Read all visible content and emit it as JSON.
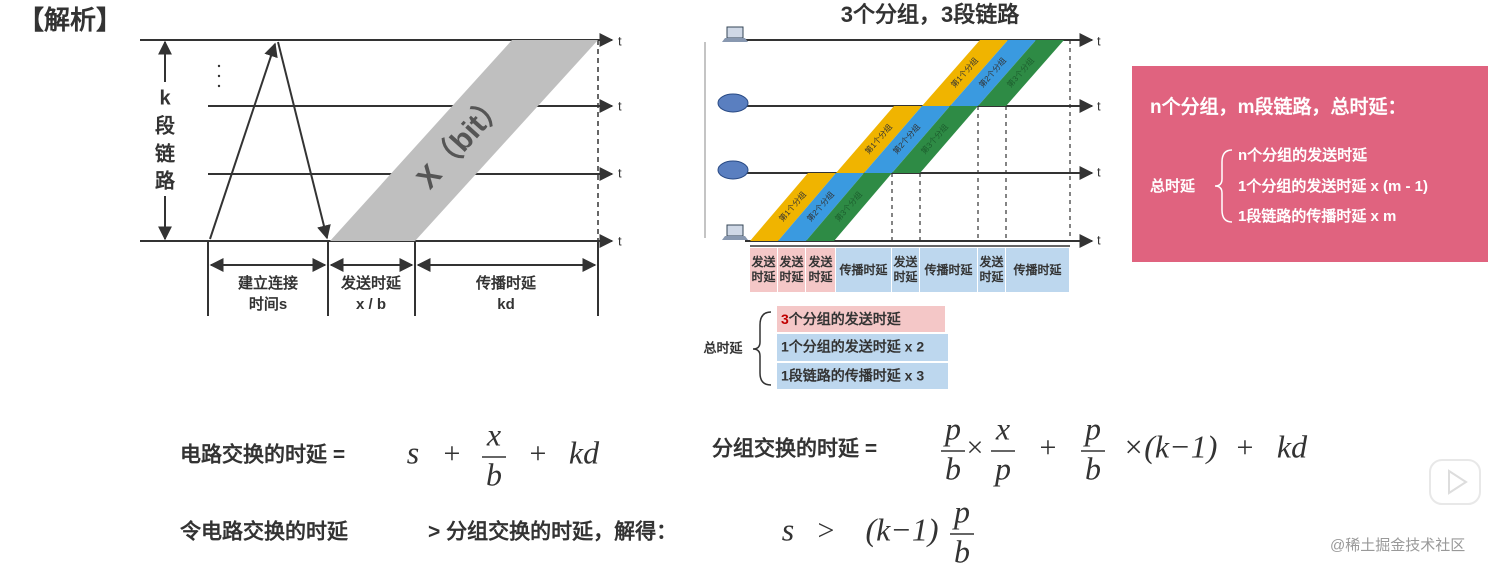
{
  "header": {
    "title": "【解析】"
  },
  "circuit_diagram": {
    "link_label": [
      "k",
      "段",
      "链",
      "路"
    ],
    "time_axis": "t",
    "data_label": "X（bit）",
    "segments": [
      {
        "lines": [
          "建立连接",
          "时间s"
        ]
      },
      {
        "lines": [
          "发送时延",
          "x / b"
        ]
      },
      {
        "lines": [
          "传播时延",
          "kd"
        ]
      }
    ]
  },
  "packet_diagram": {
    "title": "3个分组，3段链路",
    "time_axis": "t",
    "packets": [
      "第1个分组",
      "第2个分组",
      "第3个分组"
    ],
    "timeline": [
      "发送时延",
      "发送时延",
      "发送时延",
      "传播时延",
      "发送时延",
      "传播时延",
      "发送时延",
      "传播时延"
    ],
    "total_label": "总时延",
    "terms": [
      {
        "count": "3",
        "text": "个分组的发送时延"
      },
      {
        "text": "1个分组的发送时延 x 2"
      },
      {
        "text": "1段链路的传播时延 x 3"
      }
    ]
  },
  "summary": {
    "title": "n个分组，m段链路，总时延：",
    "total_label": "总时延",
    "terms": [
      "n个分组的发送时延",
      "1个分组的发送时延 x (m - 1)",
      "1段链路的传播时延 x m"
    ]
  },
  "formulas": {
    "circuit": {
      "label": "电路交换的时延 =",
      "parts": [
        "s",
        "+",
        {
          "num": "x",
          "den": "b"
        },
        "+",
        "kd"
      ]
    },
    "packet": {
      "label": "分组交换的时延 =",
      "parts": [
        {
          "num": "p",
          "den": "b"
        },
        "×",
        {
          "num": "x",
          "den": "p"
        },
        "+",
        {
          "num": "p",
          "den": "b"
        },
        "×(k−1)",
        "+",
        "kd"
      ]
    },
    "condition": {
      "label": "令电路交换的时延",
      "label2": "> 分组交换的时延，解得：",
      "parts": [
        "s",
        ">",
        "(k−1)",
        {
          "num": "p",
          "den": "b"
        }
      ]
    }
  },
  "watermark": "@稀土掘金技术社区"
}
